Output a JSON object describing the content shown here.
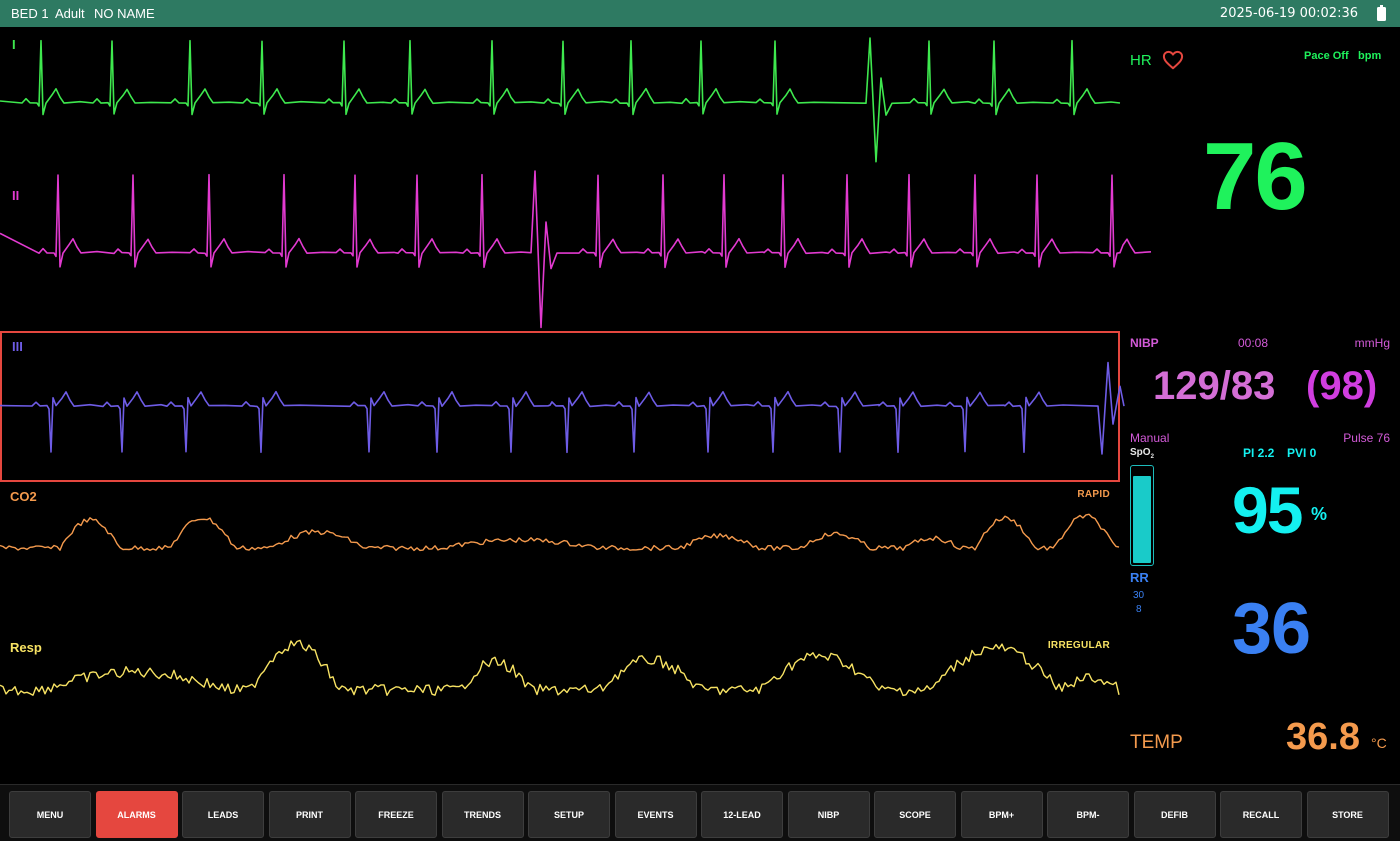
{
  "topbar": {
    "bed": "BED 1",
    "patient_type": "Adult",
    "patient_name": "NO NAME",
    "datetime": "2025-06-19 00:02:36",
    "battery_icon": "battery-icon"
  },
  "waveforms": {
    "lead_i": {
      "label": "I",
      "color": "#3ee84e"
    },
    "lead_ii": {
      "label": "II",
      "color": "#e23ad0"
    },
    "lead_iii": {
      "label": "III",
      "color": "#6e5ce6"
    },
    "co2": {
      "label": "CO2",
      "tag": "RAPID",
      "color": "#f49a4d"
    },
    "resp": {
      "label": "Resp",
      "tag": "IRREGULAR",
      "color": "#f7e263"
    },
    "selected_color": "#e5473f"
  },
  "hr": {
    "label": "HR",
    "icon": "heart-icon",
    "pace": "Pace Off",
    "unit": "bpm",
    "value": "76",
    "color": "#1ff25c"
  },
  "nibp": {
    "label": "NIBP",
    "time": "00:08",
    "unit": "mmHg",
    "value": "129/83",
    "mean": "(98)",
    "mode": "Manual",
    "pulse": "Pulse 76",
    "color": "#d35ad8"
  },
  "spo2": {
    "label": "SpO",
    "sub": "2",
    "pi": "PI 2.2",
    "pvi": "PVI 0",
    "value": "95",
    "unit": "%",
    "level_percent": 95,
    "color": "#14f0f0"
  },
  "rr": {
    "label": "RR",
    "high": "30",
    "low": "8",
    "value": "36",
    "color": "#3a80f2"
  },
  "temp": {
    "label": "TEMP",
    "value": "36.8",
    "unit": "°C",
    "color": "#f49a4d"
  },
  "buttons": [
    {
      "label": "MENU",
      "active": false
    },
    {
      "label": "ALARMS",
      "active": true
    },
    {
      "label": "LEADS",
      "active": false
    },
    {
      "label": "PRINT",
      "active": false
    },
    {
      "label": "FREEZE",
      "active": false
    },
    {
      "label": "TRENDS",
      "active": false
    },
    {
      "label": "SETUP",
      "active": false
    },
    {
      "label": "EVENTS",
      "active": false
    },
    {
      "label": "12-LEAD",
      "active": false
    },
    {
      "label": "NIBP",
      "active": false
    },
    {
      "label": "SCOPE",
      "active": false
    },
    {
      "label": "BPM+",
      "active": false
    },
    {
      "label": "BPM-",
      "active": false
    },
    {
      "label": "DEFIB",
      "active": false
    },
    {
      "label": "RECALL",
      "active": false
    },
    {
      "label": "STORE",
      "active": false
    }
  ]
}
